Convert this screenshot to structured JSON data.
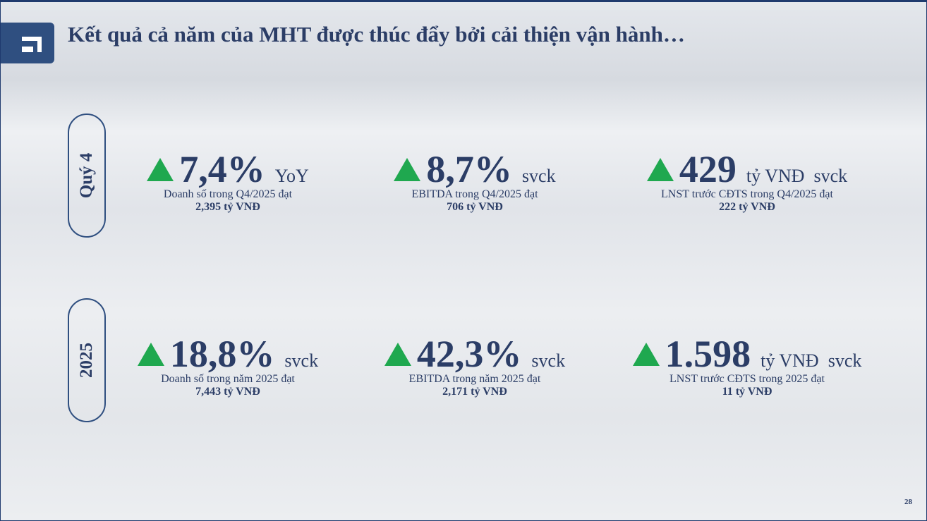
{
  "header": {
    "title": "Kết quả cả năm của MHT được thúc đẩy bởi cải thiện vận hành…"
  },
  "rows": [
    {
      "label": "Quý 4",
      "items": [
        {
          "value": "7,4%",
          "unit": "YoY",
          "description": "Doanh số trong Q4/2025 đạt",
          "amount": "2,395 tỷ VNĐ"
        },
        {
          "value": "8,7%",
          "unit": "svck",
          "description": "EBITDA trong Q4/2025 đạt",
          "amount": "706 tỷ VNĐ"
        },
        {
          "value": "429",
          "unit": "tỷ VNĐ  svck",
          "description": "LNST trước CĐTS trong Q4/2025 đạt",
          "amount": "222 tỷ VNĐ"
        }
      ]
    },
    {
      "label": "2025",
      "items": [
        {
          "value": "18,8%",
          "unit": "svck",
          "description": "Doanh số trong năm 2025 đạt",
          "amount": "7,443 tỷ VNĐ"
        },
        {
          "value": "42,3%",
          "unit": "svck",
          "description": "EBITDA trong năm 2025 đạt",
          "amount": "2,171 tỷ VNĐ"
        },
        {
          "value": "1.598",
          "unit": "tỷ VNĐ  svck",
          "description": "LNST trước CĐTS trong 2025 đạt",
          "amount": "11 tỷ VNĐ"
        }
      ]
    }
  ],
  "page_number": "28"
}
